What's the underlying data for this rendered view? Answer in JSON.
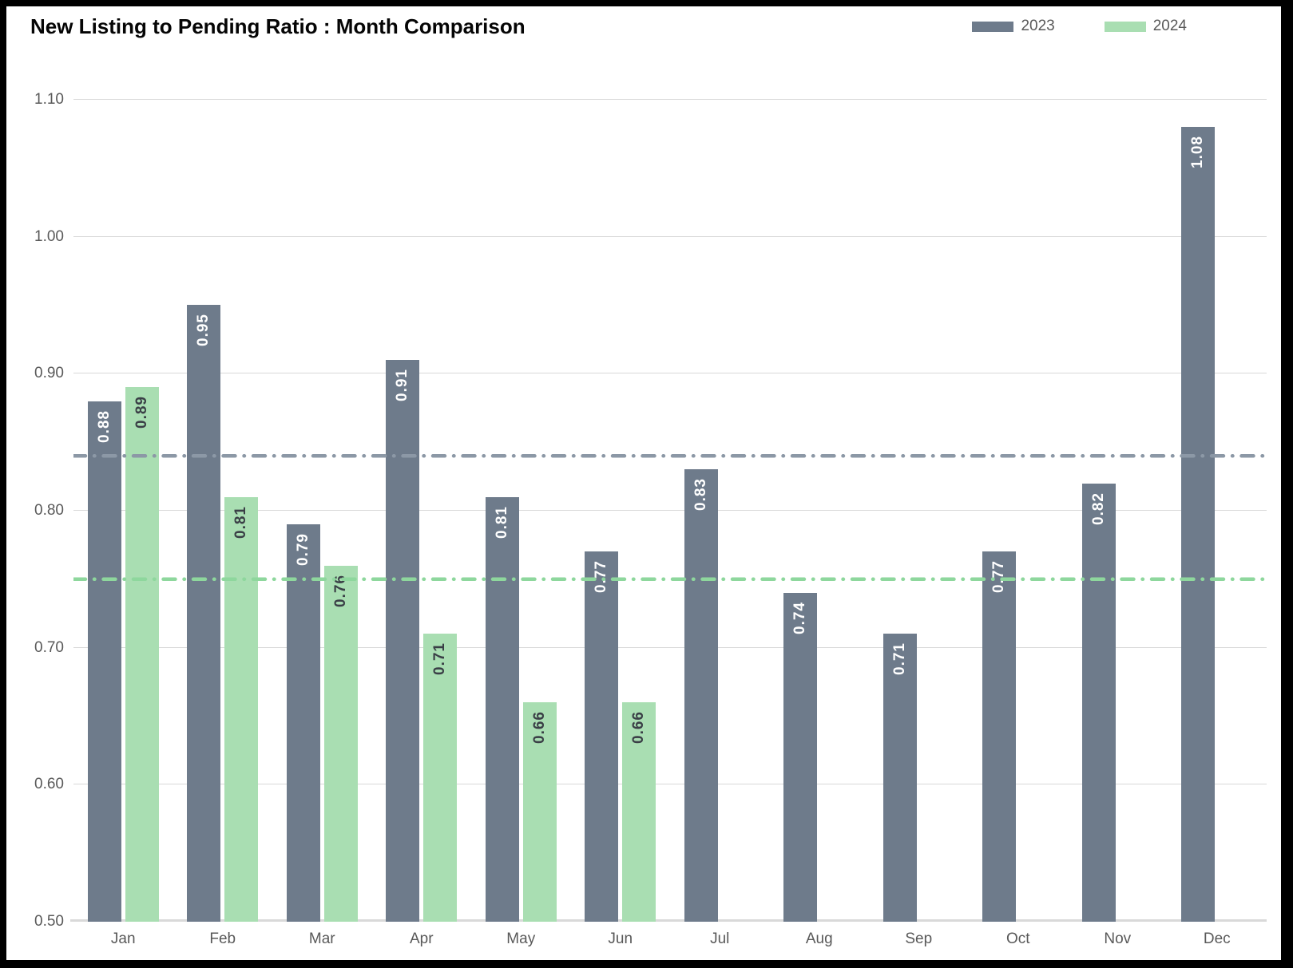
{
  "title": "New Listing to Pending Ratio : Month Comparison",
  "legend": [
    {
      "label": "2023",
      "color": "#6e7b8b"
    },
    {
      "label": "2024",
      "color": "#a9deb2"
    }
  ],
  "colors": {
    "bar_2023": "#6e7b8b",
    "bar_2024": "#a9deb2",
    "ref_line_2023": "#8c98a6",
    "ref_line_2024": "#8ed79d",
    "gridline": "#d9d9d9",
    "axis_text": "#595959",
    "label_on_2023": "#ffffff",
    "label_on_2024": "#3a3f46"
  },
  "chart_data": {
    "type": "bar",
    "title": "New Listing to Pending Ratio : Month Comparison",
    "categories": [
      "Jan",
      "Feb",
      "Mar",
      "Apr",
      "May",
      "Jun",
      "Jul",
      "Aug",
      "Sep",
      "Oct",
      "Nov",
      "Dec"
    ],
    "series": [
      {
        "name": "2023",
        "color": "#6e7b8b",
        "label_color": "#ffffff",
        "values": [
          0.88,
          0.95,
          0.79,
          0.91,
          0.81,
          0.77,
          0.83,
          0.74,
          0.71,
          0.77,
          0.82,
          1.08
        ]
      },
      {
        "name": "2024",
        "color": "#a9deb2",
        "label_color": "#3a3f46",
        "values": [
          0.89,
          0.81,
          0.76,
          0.71,
          0.66,
          0.66,
          null,
          null,
          null,
          null,
          null,
          null
        ]
      }
    ],
    "y_tick_labels": [
      "1.10",
      "1.00",
      "0.90",
      "0.80",
      "0.70",
      "0.60",
      "0.50"
    ],
    "y_ticks": [
      1.1,
      1.0,
      0.9,
      0.8,
      0.7,
      0.6,
      0.5
    ],
    "ylim": [
      0.5,
      1.1
    ],
    "grid": true,
    "legend_position": "top-right",
    "value_label_format": "2-decimals",
    "value_labels_rotated": true,
    "reference_lines": [
      {
        "series": "2023",
        "value": 0.84,
        "color": "#8c98a6",
        "style": "dash-dot"
      },
      {
        "series": "2024",
        "value": 0.75,
        "color": "#8ed79d",
        "style": "dash-dot"
      }
    ]
  }
}
